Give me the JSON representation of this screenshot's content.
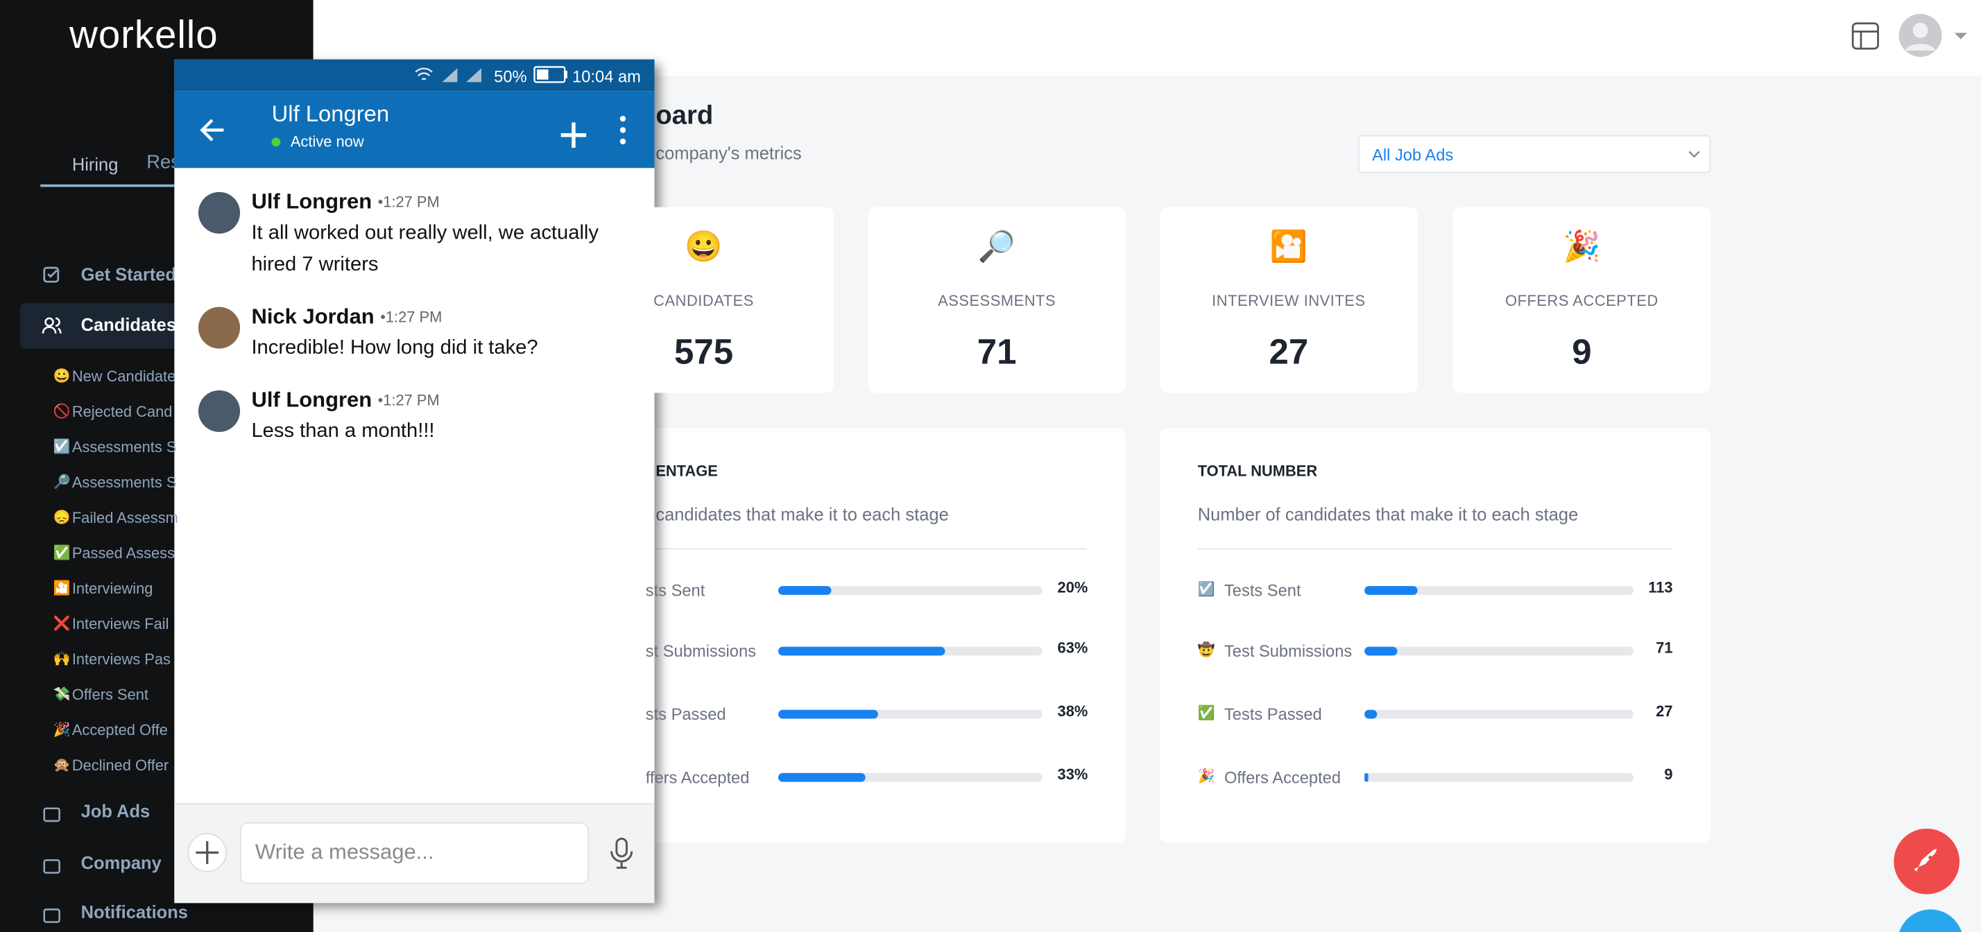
{
  "sidebar": {
    "logo": "workello",
    "tabs": [
      "Hiring",
      "Res"
    ],
    "nav": [
      "Get Started",
      "Candidates"
    ],
    "sub_items": [
      {
        "icon": "😀",
        "label": "New Candidate"
      },
      {
        "icon": "🚫",
        "label": "Rejected Cand"
      },
      {
        "icon": "☑️",
        "label": "Assessments S"
      },
      {
        "icon": "🔎",
        "label": "Assessments S"
      },
      {
        "icon": "😞",
        "label": "Failed Assessm"
      },
      {
        "icon": "✅",
        "label": "Passed Assess"
      },
      {
        "icon": "🎦",
        "label": "Interviewing"
      },
      {
        "icon": "❌",
        "label": "Interviews Fail"
      },
      {
        "icon": "🙌",
        "label": "Interviews Pas"
      },
      {
        "icon": "💸",
        "label": "Offers Sent"
      },
      {
        "icon": "🎉",
        "label": "Accepted Offe"
      },
      {
        "icon": "🙊",
        "label": "Declined Offer"
      }
    ],
    "bottom_nav": [
      "Job Ads",
      "Company",
      "Notifications"
    ]
  },
  "header": {
    "title": "oard",
    "subtitle": "company's metrics",
    "filter": "All Job Ads"
  },
  "stats": [
    {
      "icon": "😀",
      "label": "CANDIDATES",
      "value": 575
    },
    {
      "icon": "🔎",
      "label": "ASSESSMENTS",
      "value": 71
    },
    {
      "icon": "🎦",
      "label": "INTERVIEW INVITES",
      "value": 27
    },
    {
      "icon": "🎉",
      "label": "OFFERS ACCEPTED",
      "value": 9
    }
  ],
  "percentage_panel": {
    "title": "ENTAGE",
    "subtitle": "candidates that make it to each stage",
    "rows": [
      {
        "label": "sts Sent",
        "value": 20,
        "value_label": "20%"
      },
      {
        "label": "st Submissions",
        "value": 63,
        "value_label": "63%"
      },
      {
        "label": "sts Passed",
        "value": 38,
        "value_label": "38%"
      },
      {
        "label": "ffers Accepted",
        "value": 33,
        "value_label": "33%"
      }
    ]
  },
  "total_panel": {
    "title": "TOTAL NUMBER",
    "subtitle": "Number of candidates that make it to each stage",
    "rows": [
      {
        "icon": "☑️",
        "label": "Tests Sent",
        "value": 113
      },
      {
        "icon": "🤠",
        "label": "Test Submissions",
        "value": 71
      },
      {
        "icon": "✅",
        "label": "Tests Passed",
        "value": 27
      },
      {
        "icon": "🎉",
        "label": "Offers Accepted",
        "value": 9
      }
    ]
  },
  "chat": {
    "battery": "50%",
    "time": "10:04 am",
    "contact": "Ulf Longren",
    "presence": "Active now",
    "messages": [
      {
        "author": "Ulf Longren",
        "time": "•1:27 PM",
        "text": "It all worked out really well, we actually hired 7 writers"
      },
      {
        "author": "Nick Jordan",
        "time": "•1:27 PM",
        "text": "Incredible! How long did it take?"
      },
      {
        "author": "Ulf Longren",
        "time": "•1:27 PM",
        "text": "Less than a month!!!"
      }
    ],
    "input_placeholder": "Write a message..."
  }
}
